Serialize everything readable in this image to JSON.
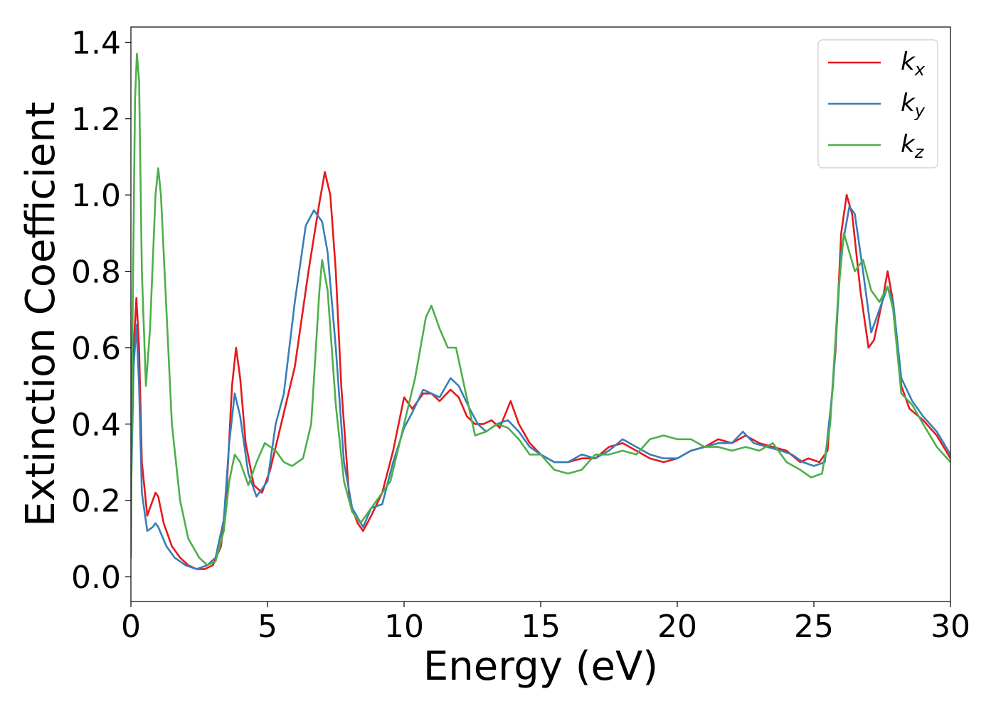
{
  "chart_data": {
    "type": "line",
    "title": "",
    "xlabel": "Energy (eV)",
    "ylabel": "Extinction Coefficient",
    "xlim": [
      0,
      30
    ],
    "ylim": [
      -0.065,
      1.44
    ],
    "xticks": [
      0,
      5,
      10,
      15,
      20,
      25,
      30
    ],
    "xtick_labels": [
      "0",
      "5",
      "10",
      "15",
      "20",
      "25",
      "30"
    ],
    "yticks": [
      0.0,
      0.2,
      0.4,
      0.6,
      0.8,
      1.0,
      1.2,
      1.4
    ],
    "ytick_labels": [
      "0.0",
      "0.2",
      "0.4",
      "0.6",
      "0.8",
      "1.0",
      "1.2",
      "1.4"
    ],
    "grid": false,
    "legend_position": "top-right",
    "series": [
      {
        "name": "k",
        "subscript": "x",
        "color": "#e41a1c",
        "points": [
          [
            0,
            0.25
          ],
          [
            0.1,
            0.6
          ],
          [
            0.2,
            0.73
          ],
          [
            0.3,
            0.6
          ],
          [
            0.4,
            0.3
          ],
          [
            0.6,
            0.16
          ],
          [
            0.8,
            0.2
          ],
          [
            0.9,
            0.22
          ],
          [
            1.0,
            0.21
          ],
          [
            1.2,
            0.14
          ],
          [
            1.5,
            0.08
          ],
          [
            1.8,
            0.05
          ],
          [
            2.1,
            0.03
          ],
          [
            2.4,
            0.02
          ],
          [
            2.7,
            0.02
          ],
          [
            3.0,
            0.03
          ],
          [
            3.3,
            0.08
          ],
          [
            3.5,
            0.22
          ],
          [
            3.7,
            0.5
          ],
          [
            3.85,
            0.6
          ],
          [
            4.0,
            0.52
          ],
          [
            4.2,
            0.35
          ],
          [
            4.5,
            0.24
          ],
          [
            4.8,
            0.22
          ],
          [
            5.1,
            0.28
          ],
          [
            5.5,
            0.4
          ],
          [
            6.0,
            0.55
          ],
          [
            6.5,
            0.8
          ],
          [
            6.9,
            0.98
          ],
          [
            7.1,
            1.06
          ],
          [
            7.3,
            1.0
          ],
          [
            7.5,
            0.8
          ],
          [
            7.7,
            0.5
          ],
          [
            8.0,
            0.2
          ],
          [
            8.3,
            0.14
          ],
          [
            8.5,
            0.12
          ],
          [
            8.8,
            0.16
          ],
          [
            9.2,
            0.22
          ],
          [
            9.6,
            0.33
          ],
          [
            10.0,
            0.47
          ],
          [
            10.3,
            0.44
          ],
          [
            10.7,
            0.48
          ],
          [
            11.0,
            0.48
          ],
          [
            11.3,
            0.46
          ],
          [
            11.7,
            0.49
          ],
          [
            12.0,
            0.47
          ],
          [
            12.3,
            0.42
          ],
          [
            12.6,
            0.4
          ],
          [
            12.9,
            0.4
          ],
          [
            13.2,
            0.41
          ],
          [
            13.5,
            0.39
          ],
          [
            13.9,
            0.46
          ],
          [
            14.2,
            0.4
          ],
          [
            14.6,
            0.35
          ],
          [
            15.0,
            0.32
          ],
          [
            15.5,
            0.3
          ],
          [
            16.0,
            0.3
          ],
          [
            16.5,
            0.31
          ],
          [
            17.0,
            0.31
          ],
          [
            17.5,
            0.34
          ],
          [
            18.0,
            0.35
          ],
          [
            18.5,
            0.33
          ],
          [
            19.0,
            0.31
          ],
          [
            19.5,
            0.3
          ],
          [
            20.0,
            0.31
          ],
          [
            20.5,
            0.33
          ],
          [
            21.0,
            0.34
          ],
          [
            21.5,
            0.36
          ],
          [
            22.0,
            0.35
          ],
          [
            22.5,
            0.37
          ],
          [
            23.0,
            0.35
          ],
          [
            23.5,
            0.34
          ],
          [
            24.0,
            0.33
          ],
          [
            24.5,
            0.3
          ],
          [
            24.8,
            0.31
          ],
          [
            25.2,
            0.3
          ],
          [
            25.5,
            0.33
          ],
          [
            25.8,
            0.6
          ],
          [
            26.0,
            0.9
          ],
          [
            26.2,
            1.0
          ],
          [
            26.4,
            0.95
          ],
          [
            26.7,
            0.75
          ],
          [
            27.0,
            0.6
          ],
          [
            27.2,
            0.62
          ],
          [
            27.5,
            0.72
          ],
          [
            27.7,
            0.8
          ],
          [
            27.9,
            0.72
          ],
          [
            28.2,
            0.5
          ],
          [
            28.5,
            0.44
          ],
          [
            29.0,
            0.41
          ],
          [
            29.5,
            0.37
          ],
          [
            30.0,
            0.31
          ]
        ]
      },
      {
        "name": "k",
        "subscript": "y",
        "color": "#377eb8",
        "points": [
          [
            0,
            0.2
          ],
          [
            0.1,
            0.55
          ],
          [
            0.2,
            0.66
          ],
          [
            0.3,
            0.5
          ],
          [
            0.4,
            0.22
          ],
          [
            0.6,
            0.12
          ],
          [
            0.8,
            0.13
          ],
          [
            0.9,
            0.14
          ],
          [
            1.0,
            0.13
          ],
          [
            1.3,
            0.08
          ],
          [
            1.6,
            0.05
          ],
          [
            2.0,
            0.03
          ],
          [
            2.4,
            0.02
          ],
          [
            2.8,
            0.03
          ],
          [
            3.1,
            0.05
          ],
          [
            3.4,
            0.15
          ],
          [
            3.6,
            0.35
          ],
          [
            3.8,
            0.48
          ],
          [
            4.0,
            0.42
          ],
          [
            4.3,
            0.27
          ],
          [
            4.6,
            0.21
          ],
          [
            5.0,
            0.25
          ],
          [
            5.3,
            0.4
          ],
          [
            5.6,
            0.48
          ],
          [
            6.0,
            0.72
          ],
          [
            6.4,
            0.92
          ],
          [
            6.7,
            0.96
          ],
          [
            7.0,
            0.93
          ],
          [
            7.2,
            0.85
          ],
          [
            7.5,
            0.6
          ],
          [
            7.8,
            0.3
          ],
          [
            8.1,
            0.18
          ],
          [
            8.5,
            0.13
          ],
          [
            8.8,
            0.18
          ],
          [
            9.2,
            0.19
          ],
          [
            9.6,
            0.3
          ],
          [
            10.0,
            0.39
          ],
          [
            10.3,
            0.43
          ],
          [
            10.7,
            0.49
          ],
          [
            11.0,
            0.48
          ],
          [
            11.3,
            0.47
          ],
          [
            11.7,
            0.52
          ],
          [
            12.0,
            0.5
          ],
          [
            12.4,
            0.44
          ],
          [
            12.7,
            0.4
          ],
          [
            13.0,
            0.38
          ],
          [
            13.4,
            0.4
          ],
          [
            13.8,
            0.41
          ],
          [
            14.2,
            0.38
          ],
          [
            14.6,
            0.34
          ],
          [
            15.0,
            0.32
          ],
          [
            15.5,
            0.3
          ],
          [
            16.0,
            0.3
          ],
          [
            16.5,
            0.32
          ],
          [
            17.0,
            0.31
          ],
          [
            17.5,
            0.33
          ],
          [
            18.0,
            0.36
          ],
          [
            18.5,
            0.34
          ],
          [
            19.0,
            0.32
          ],
          [
            19.5,
            0.31
          ],
          [
            20.0,
            0.31
          ],
          [
            20.5,
            0.33
          ],
          [
            21.0,
            0.34
          ],
          [
            21.5,
            0.35
          ],
          [
            22.0,
            0.35
          ],
          [
            22.4,
            0.38
          ],
          [
            22.8,
            0.35
          ],
          [
            23.3,
            0.34
          ],
          [
            23.8,
            0.33
          ],
          [
            24.2,
            0.32
          ],
          [
            24.6,
            0.3
          ],
          [
            25.0,
            0.29
          ],
          [
            25.4,
            0.3
          ],
          [
            25.7,
            0.5
          ],
          [
            26.0,
            0.85
          ],
          [
            26.3,
            0.97
          ],
          [
            26.5,
            0.95
          ],
          [
            26.8,
            0.8
          ],
          [
            27.1,
            0.64
          ],
          [
            27.4,
            0.7
          ],
          [
            27.7,
            0.76
          ],
          [
            27.9,
            0.72
          ],
          [
            28.2,
            0.52
          ],
          [
            28.6,
            0.46
          ],
          [
            29.0,
            0.42
          ],
          [
            29.5,
            0.38
          ],
          [
            30.0,
            0.32
          ]
        ]
      },
      {
        "name": "k",
        "subscript": "z",
        "color": "#4daf4a",
        "points": [
          [
            0,
            0.05
          ],
          [
            0.05,
            0.6
          ],
          [
            0.15,
            1.25
          ],
          [
            0.22,
            1.37
          ],
          [
            0.3,
            1.3
          ],
          [
            0.4,
            0.8
          ],
          [
            0.55,
            0.5
          ],
          [
            0.7,
            0.65
          ],
          [
            0.9,
            1.0
          ],
          [
            1.0,
            1.07
          ],
          [
            1.1,
            1.0
          ],
          [
            1.3,
            0.7
          ],
          [
            1.5,
            0.4
          ],
          [
            1.8,
            0.2
          ],
          [
            2.1,
            0.1
          ],
          [
            2.5,
            0.05
          ],
          [
            2.8,
            0.03
          ],
          [
            3.1,
            0.04
          ],
          [
            3.4,
            0.12
          ],
          [
            3.6,
            0.25
          ],
          [
            3.8,
            0.32
          ],
          [
            4.0,
            0.3
          ],
          [
            4.3,
            0.24
          ],
          [
            4.6,
            0.3
          ],
          [
            4.9,
            0.35
          ],
          [
            5.3,
            0.33
          ],
          [
            5.6,
            0.3
          ],
          [
            5.9,
            0.29
          ],
          [
            6.3,
            0.31
          ],
          [
            6.6,
            0.4
          ],
          [
            6.9,
            0.75
          ],
          [
            7.0,
            0.83
          ],
          [
            7.2,
            0.75
          ],
          [
            7.5,
            0.45
          ],
          [
            7.8,
            0.25
          ],
          [
            8.1,
            0.17
          ],
          [
            8.4,
            0.14
          ],
          [
            8.7,
            0.17
          ],
          [
            9.0,
            0.2
          ],
          [
            9.5,
            0.25
          ],
          [
            10.0,
            0.4
          ],
          [
            10.4,
            0.52
          ],
          [
            10.8,
            0.68
          ],
          [
            11.0,
            0.71
          ],
          [
            11.3,
            0.65
          ],
          [
            11.6,
            0.6
          ],
          [
            11.9,
            0.6
          ],
          [
            12.2,
            0.5
          ],
          [
            12.6,
            0.37
          ],
          [
            13.0,
            0.38
          ],
          [
            13.4,
            0.4
          ],
          [
            13.8,
            0.39
          ],
          [
            14.2,
            0.36
          ],
          [
            14.6,
            0.32
          ],
          [
            15.0,
            0.32
          ],
          [
            15.5,
            0.28
          ],
          [
            16.0,
            0.27
          ],
          [
            16.5,
            0.28
          ],
          [
            17.0,
            0.32
          ],
          [
            17.5,
            0.32
          ],
          [
            18.0,
            0.33
          ],
          [
            18.5,
            0.32
          ],
          [
            19.0,
            0.36
          ],
          [
            19.5,
            0.37
          ],
          [
            20.0,
            0.36
          ],
          [
            20.5,
            0.36
          ],
          [
            21.0,
            0.34
          ],
          [
            21.5,
            0.34
          ],
          [
            22.0,
            0.33
          ],
          [
            22.5,
            0.34
          ],
          [
            23.0,
            0.33
          ],
          [
            23.5,
            0.35
          ],
          [
            24.0,
            0.3
          ],
          [
            24.5,
            0.28
          ],
          [
            24.9,
            0.26
          ],
          [
            25.3,
            0.27
          ],
          [
            25.6,
            0.4
          ],
          [
            25.9,
            0.75
          ],
          [
            26.1,
            0.9
          ],
          [
            26.3,
            0.85
          ],
          [
            26.5,
            0.8
          ],
          [
            26.8,
            0.83
          ],
          [
            27.1,
            0.75
          ],
          [
            27.4,
            0.72
          ],
          [
            27.7,
            0.76
          ],
          [
            27.9,
            0.7
          ],
          [
            28.2,
            0.48
          ],
          [
            28.6,
            0.45
          ],
          [
            29.0,
            0.4
          ],
          [
            29.5,
            0.34
          ],
          [
            30.0,
            0.3
          ]
        ]
      }
    ]
  }
}
